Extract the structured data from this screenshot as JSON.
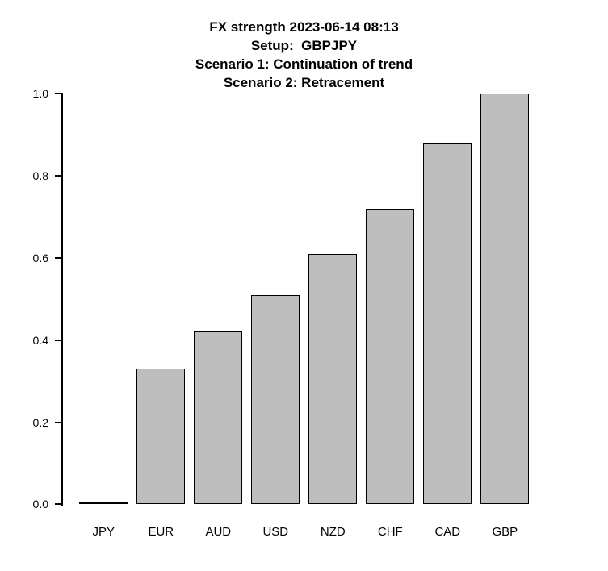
{
  "chart_data": {
    "type": "bar",
    "title": "FX strength 2023-06-14 08:13",
    "title_lines": [
      "FX strength 2023-06-14 08:13",
      "Setup:  GBPJPY",
      "Scenario 1: Continuation of trend",
      "Scenario 2: Retracement"
    ],
    "categories": [
      "JPY",
      "EUR",
      "AUD",
      "USD",
      "NZD",
      "CHF",
      "CAD",
      "GBP"
    ],
    "values": [
      0.0,
      0.33,
      0.42,
      0.51,
      0.61,
      0.72,
      0.88,
      1.0
    ],
    "xlabel": "",
    "ylabel": "",
    "ylim": [
      0.0,
      1.0
    ],
    "yticks": [
      0.0,
      0.2,
      0.4,
      0.6,
      0.8,
      1.0
    ],
    "ytick_labels": [
      "0.0",
      "0.2",
      "0.4",
      "0.6",
      "0.8",
      "1.0"
    ],
    "grid": false,
    "legend": null,
    "bar_fill_color": "#bebebe",
    "bar_border_color": "#000000",
    "axis_color": "#000000",
    "text_color": "#000000",
    "background_color": "#ffffff"
  }
}
